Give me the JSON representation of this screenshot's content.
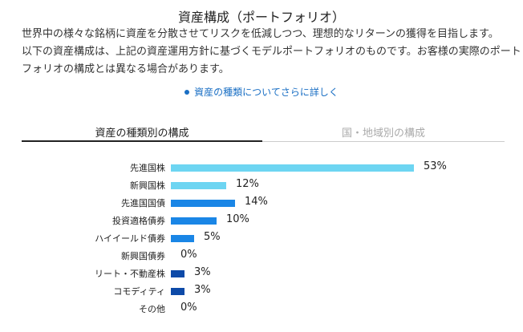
{
  "title": "資産構成（ポートフォリオ）",
  "description": [
    "世界中の様々な銘柄に資産を分散させてリスクを低減しつつ、理想的なリターンの獲得を目指します。",
    "以下の資産構成は、上記の資産運用方針に基づくモデルポートフォリオのものです。お客様の実際のポート",
    "フォリオの構成とは異なる場合があります。"
  ],
  "more_link": "資産の種類についてさらに詳しく",
  "tabs": [
    {
      "label": "資産の種類別の構成",
      "active": true
    },
    {
      "label": "国・地域別の構成",
      "active": false
    }
  ],
  "chart_data": {
    "type": "bar",
    "orientation": "horizontal",
    "categories": [
      "先進国株",
      "新興国株",
      "先進国国債",
      "投資適格債券",
      "ハイイールド債券",
      "新興国債券",
      "リート・不動産株",
      "コモディティ",
      "その他"
    ],
    "values": [
      53,
      12,
      14,
      10,
      5,
      0,
      3,
      3,
      0
    ],
    "labels": [
      "53%",
      "12%",
      "14%",
      "10%",
      "5%",
      "0%",
      "3%",
      "3%",
      "0%"
    ],
    "colors": [
      "#6dd5f2",
      "#6dd5f2",
      "#1a86e6",
      "#1a86e6",
      "#1a86e6",
      "#1a86e6",
      "#0d4aa8",
      "#0d4aa8",
      "#0d4aa8"
    ],
    "unit": "%"
  }
}
